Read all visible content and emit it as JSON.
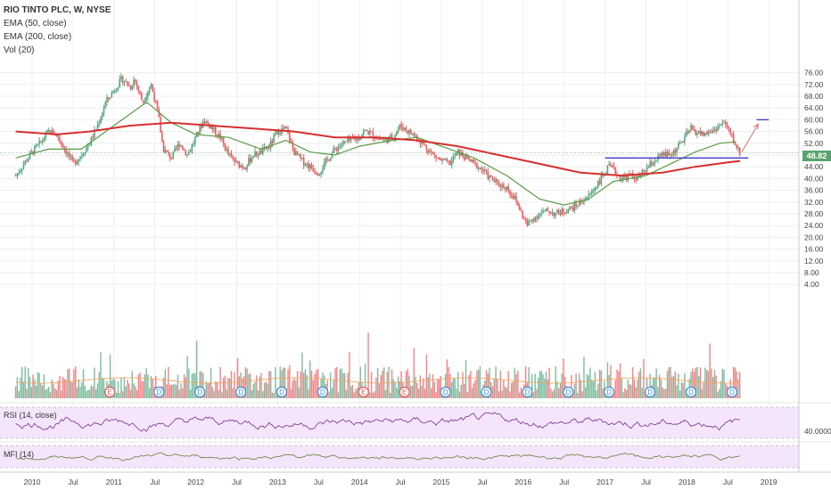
{
  "header": {
    "title": "RIO TINTO PLC, W, NYSE",
    "indicators": [
      "EMA (50, close)",
      "EMA (200, close)",
      "Vol (20)"
    ]
  },
  "panes": {
    "rsi_label": "RSI (14, close)",
    "mfi_label": "MFI (14)",
    "rsi_level": "40.0000"
  },
  "colors": {
    "up": "#53a67f",
    "down": "#ef5a5f",
    "ema50": "#5a9a45",
    "ema200": "#d62f2f",
    "support": "#3a3ac8",
    "target": "#3a3ac8",
    "arrow": "#e06b6b",
    "rsi_line": "#7b2f8e",
    "mfi_line": "#6f7a3b",
    "pane_fill": "#f4e5fb"
  },
  "chart_data": {
    "type": "candlestick",
    "title": "RIO TINTO PLC, W, NYSE",
    "last_price": "48.82",
    "y_ticks": [
      "76.00",
      "72.00",
      "68.00",
      "64.00",
      "60.00",
      "56.00",
      "52.00",
      "48.00",
      "44.00",
      "40.00",
      "36.00",
      "32.00",
      "28.00",
      "24.00",
      "20.00",
      "16.00",
      "12.00",
      "8.00",
      "4.00"
    ],
    "x_ticks": [
      "2010",
      "Jul",
      "2011",
      "Jul",
      "2012",
      "Jul",
      "2013",
      "Jul",
      "2014",
      "Jul",
      "2015",
      "Jul",
      "2016",
      "Jul",
      "2017",
      "Jul",
      "2018",
      "Jul",
      "2019"
    ],
    "price_path": [
      [
        2009.8,
        41
      ],
      [
        2009.9,
        45
      ],
      [
        2010.0,
        49
      ],
      [
        2010.1,
        52
      ],
      [
        2010.2,
        56
      ],
      [
        2010.3,
        55
      ],
      [
        2010.4,
        50
      ],
      [
        2010.5,
        45
      ],
      [
        2010.6,
        48
      ],
      [
        2010.7,
        52
      ],
      [
        2010.8,
        58
      ],
      [
        2010.9,
        66
      ],
      [
        2011.0,
        70
      ],
      [
        2011.05,
        72
      ],
      [
        2011.1,
        74
      ],
      [
        2011.2,
        71
      ],
      [
        2011.25,
        74
      ],
      [
        2011.35,
        66
      ],
      [
        2011.45,
        72
      ],
      [
        2011.5,
        67
      ],
      [
        2011.55,
        60
      ],
      [
        2011.6,
        50
      ],
      [
        2011.7,
        47
      ],
      [
        2011.8,
        52
      ],
      [
        2011.9,
        48
      ],
      [
        2012.0,
        54
      ],
      [
        2012.1,
        60
      ],
      [
        2012.2,
        57
      ],
      [
        2012.3,
        54
      ],
      [
        2012.4,
        48
      ],
      [
        2012.5,
        45
      ],
      [
        2012.6,
        44
      ],
      [
        2012.7,
        48
      ],
      [
        2012.8,
        49
      ],
      [
        2012.9,
        51
      ],
      [
        2013.0,
        56
      ],
      [
        2013.1,
        57
      ],
      [
        2013.2,
        49
      ],
      [
        2013.3,
        46
      ],
      [
        2013.4,
        44
      ],
      [
        2013.5,
        42
      ],
      [
        2013.55,
        44
      ],
      [
        2013.6,
        46
      ],
      [
        2013.7,
        50
      ],
      [
        2013.8,
        52
      ],
      [
        2013.9,
        53
      ],
      [
        2014.0,
        54
      ],
      [
        2014.05,
        56
      ],
      [
        2014.1,
        56
      ],
      [
        2014.2,
        54
      ],
      [
        2014.3,
        53
      ],
      [
        2014.4,
        54
      ],
      [
        2014.5,
        58
      ],
      [
        2014.6,
        56
      ],
      [
        2014.7,
        54
      ],
      [
        2014.8,
        51
      ],
      [
        2014.9,
        48
      ],
      [
        2015.0,
        46
      ],
      [
        2015.1,
        45
      ],
      [
        2015.2,
        49
      ],
      [
        2015.3,
        47
      ],
      [
        2015.4,
        45
      ],
      [
        2015.5,
        43
      ],
      [
        2015.6,
        40
      ],
      [
        2015.7,
        38
      ],
      [
        2015.8,
        37
      ],
      [
        2015.9,
        33
      ],
      [
        2016.0,
        27
      ],
      [
        2016.05,
        24
      ],
      [
        2016.1,
        26
      ],
      [
        2016.2,
        28
      ],
      [
        2016.3,
        29
      ],
      [
        2016.4,
        28
      ],
      [
        2016.5,
        29
      ],
      [
        2016.6,
        30
      ],
      [
        2016.7,
        32
      ],
      [
        2016.8,
        34
      ],
      [
        2016.9,
        38
      ],
      [
        2017.0,
        42
      ],
      [
        2017.05,
        44
      ],
      [
        2017.1,
        43
      ],
      [
        2017.2,
        40
      ],
      [
        2017.3,
        41
      ],
      [
        2017.4,
        40
      ],
      [
        2017.5,
        43
      ],
      [
        2017.6,
        46
      ],
      [
        2017.7,
        48
      ],
      [
        2017.8,
        48
      ],
      [
        2017.9,
        51
      ],
      [
        2018.0,
        55
      ],
      [
        2018.05,
        57
      ],
      [
        2018.1,
        56
      ],
      [
        2018.2,
        55
      ],
      [
        2018.3,
        56
      ],
      [
        2018.4,
        58
      ],
      [
        2018.45,
        59
      ],
      [
        2018.5,
        57
      ],
      [
        2018.55,
        54
      ],
      [
        2018.6,
        51
      ],
      [
        2018.65,
        48.82
      ]
    ],
    "ema50_path": [
      [
        2009.8,
        47
      ],
      [
        2010.2,
        50
      ],
      [
        2010.6,
        50
      ],
      [
        2011.0,
        58
      ],
      [
        2011.4,
        66
      ],
      [
        2011.7,
        59
      ],
      [
        2012.0,
        55
      ],
      [
        2012.4,
        54
      ],
      [
        2012.8,
        50
      ],
      [
        2013.1,
        53
      ],
      [
        2013.4,
        49
      ],
      [
        2013.7,
        48
      ],
      [
        2014.0,
        51
      ],
      [
        2014.4,
        53
      ],
      [
        2014.7,
        54
      ],
      [
        2015.0,
        51
      ],
      [
        2015.4,
        47
      ],
      [
        2015.8,
        41
      ],
      [
        2016.2,
        33
      ],
      [
        2016.5,
        31
      ],
      [
        2016.8,
        33
      ],
      [
        2017.1,
        39
      ],
      [
        2017.5,
        41
      ],
      [
        2017.8,
        45
      ],
      [
        2018.1,
        49
      ],
      [
        2018.4,
        52
      ],
      [
        2018.6,
        52.5
      ]
    ],
    "ema200_path": [
      [
        2009.8,
        56
      ],
      [
        2010.3,
        55
      ],
      [
        2010.7,
        56
      ],
      [
        2011.2,
        58
      ],
      [
        2011.7,
        59
      ],
      [
        2012.2,
        58
      ],
      [
        2012.7,
        57
      ],
      [
        2013.2,
        56
      ],
      [
        2013.7,
        54
      ],
      [
        2014.2,
        54
      ],
      [
        2014.7,
        53
      ],
      [
        2015.2,
        51
      ],
      [
        2015.7,
        48
      ],
      [
        2016.2,
        45
      ],
      [
        2016.7,
        42
      ],
      [
        2017.2,
        41
      ],
      [
        2017.7,
        42
      ],
      [
        2018.1,
        44
      ],
      [
        2018.5,
        45.5
      ],
      [
        2018.65,
        46
      ]
    ],
    "annotations": {
      "support_level": 47,
      "support_from": 2017.0,
      "support_to": 2018.75,
      "target_level": 60,
      "target_from": 2018.85,
      "target_to": 2019.0,
      "arrow_from": [
        2018.67,
        49
      ],
      "arrow_to": [
        2018.87,
        58.5
      ]
    },
    "dividends": [
      {
        "x": 2010.95,
        "label": "E"
      },
      {
        "x": 2011.55,
        "label": "D"
      },
      {
        "x": 2012.05,
        "label": "D"
      },
      {
        "x": 2012.55,
        "label": "D"
      },
      {
        "x": 2013.05,
        "label": "D"
      },
      {
        "x": 2013.55,
        "label": "D"
      },
      {
        "x": 2014.05,
        "label": "E"
      },
      {
        "x": 2014.55,
        "label": "E"
      },
      {
        "x": 2015.05,
        "label": "D"
      },
      {
        "x": 2015.55,
        "label": "D"
      },
      {
        "x": 2016.05,
        "label": "D"
      },
      {
        "x": 2016.55,
        "label": "D"
      },
      {
        "x": 2017.05,
        "label": "D"
      },
      {
        "x": 2017.55,
        "label": "D"
      },
      {
        "x": 2018.05,
        "label": "D"
      },
      {
        "x": 2018.55,
        "label": "D"
      }
    ]
  }
}
